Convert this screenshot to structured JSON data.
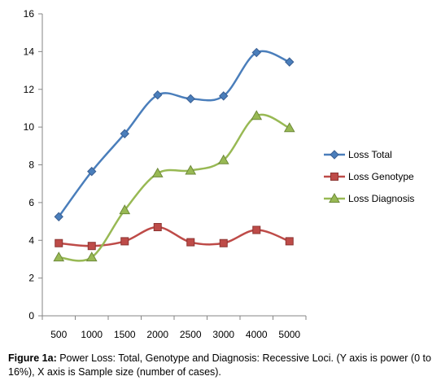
{
  "chart_data": {
    "type": "line",
    "categories": [
      "500",
      "1000",
      "1500",
      "2000",
      "2500",
      "3000",
      "4000",
      "5000"
    ],
    "ylim": [
      0,
      16
    ],
    "yticks": [
      0,
      2,
      4,
      6,
      8,
      10,
      12,
      14,
      16
    ],
    "grid": false,
    "legend_position": "right",
    "series": [
      {
        "name": "Loss Total",
        "marker": "diamond",
        "color": "#4a7ebb",
        "values": [
          5.25,
          7.65,
          9.65,
          11.7,
          11.5,
          11.65,
          13.95,
          13.45
        ]
      },
      {
        "name": "Loss Genotype",
        "marker": "square",
        "color": "#be4b48",
        "values": [
          3.85,
          3.7,
          3.95,
          4.7,
          3.9,
          3.85,
          4.55,
          3.95
        ]
      },
      {
        "name": "Loss Diagnosis",
        "marker": "triangle",
        "color": "#98b954",
        "values": [
          3.1,
          3.1,
          5.6,
          7.55,
          7.7,
          8.25,
          10.6,
          9.95
        ]
      }
    ]
  },
  "caption": {
    "label": "Figure 1a:",
    "text": " Power Loss: Total, Genotype and Diagnosis: Recessive Loci. (Y axis is power (0 to 16%), X axis is Sample size (number of cases)."
  }
}
